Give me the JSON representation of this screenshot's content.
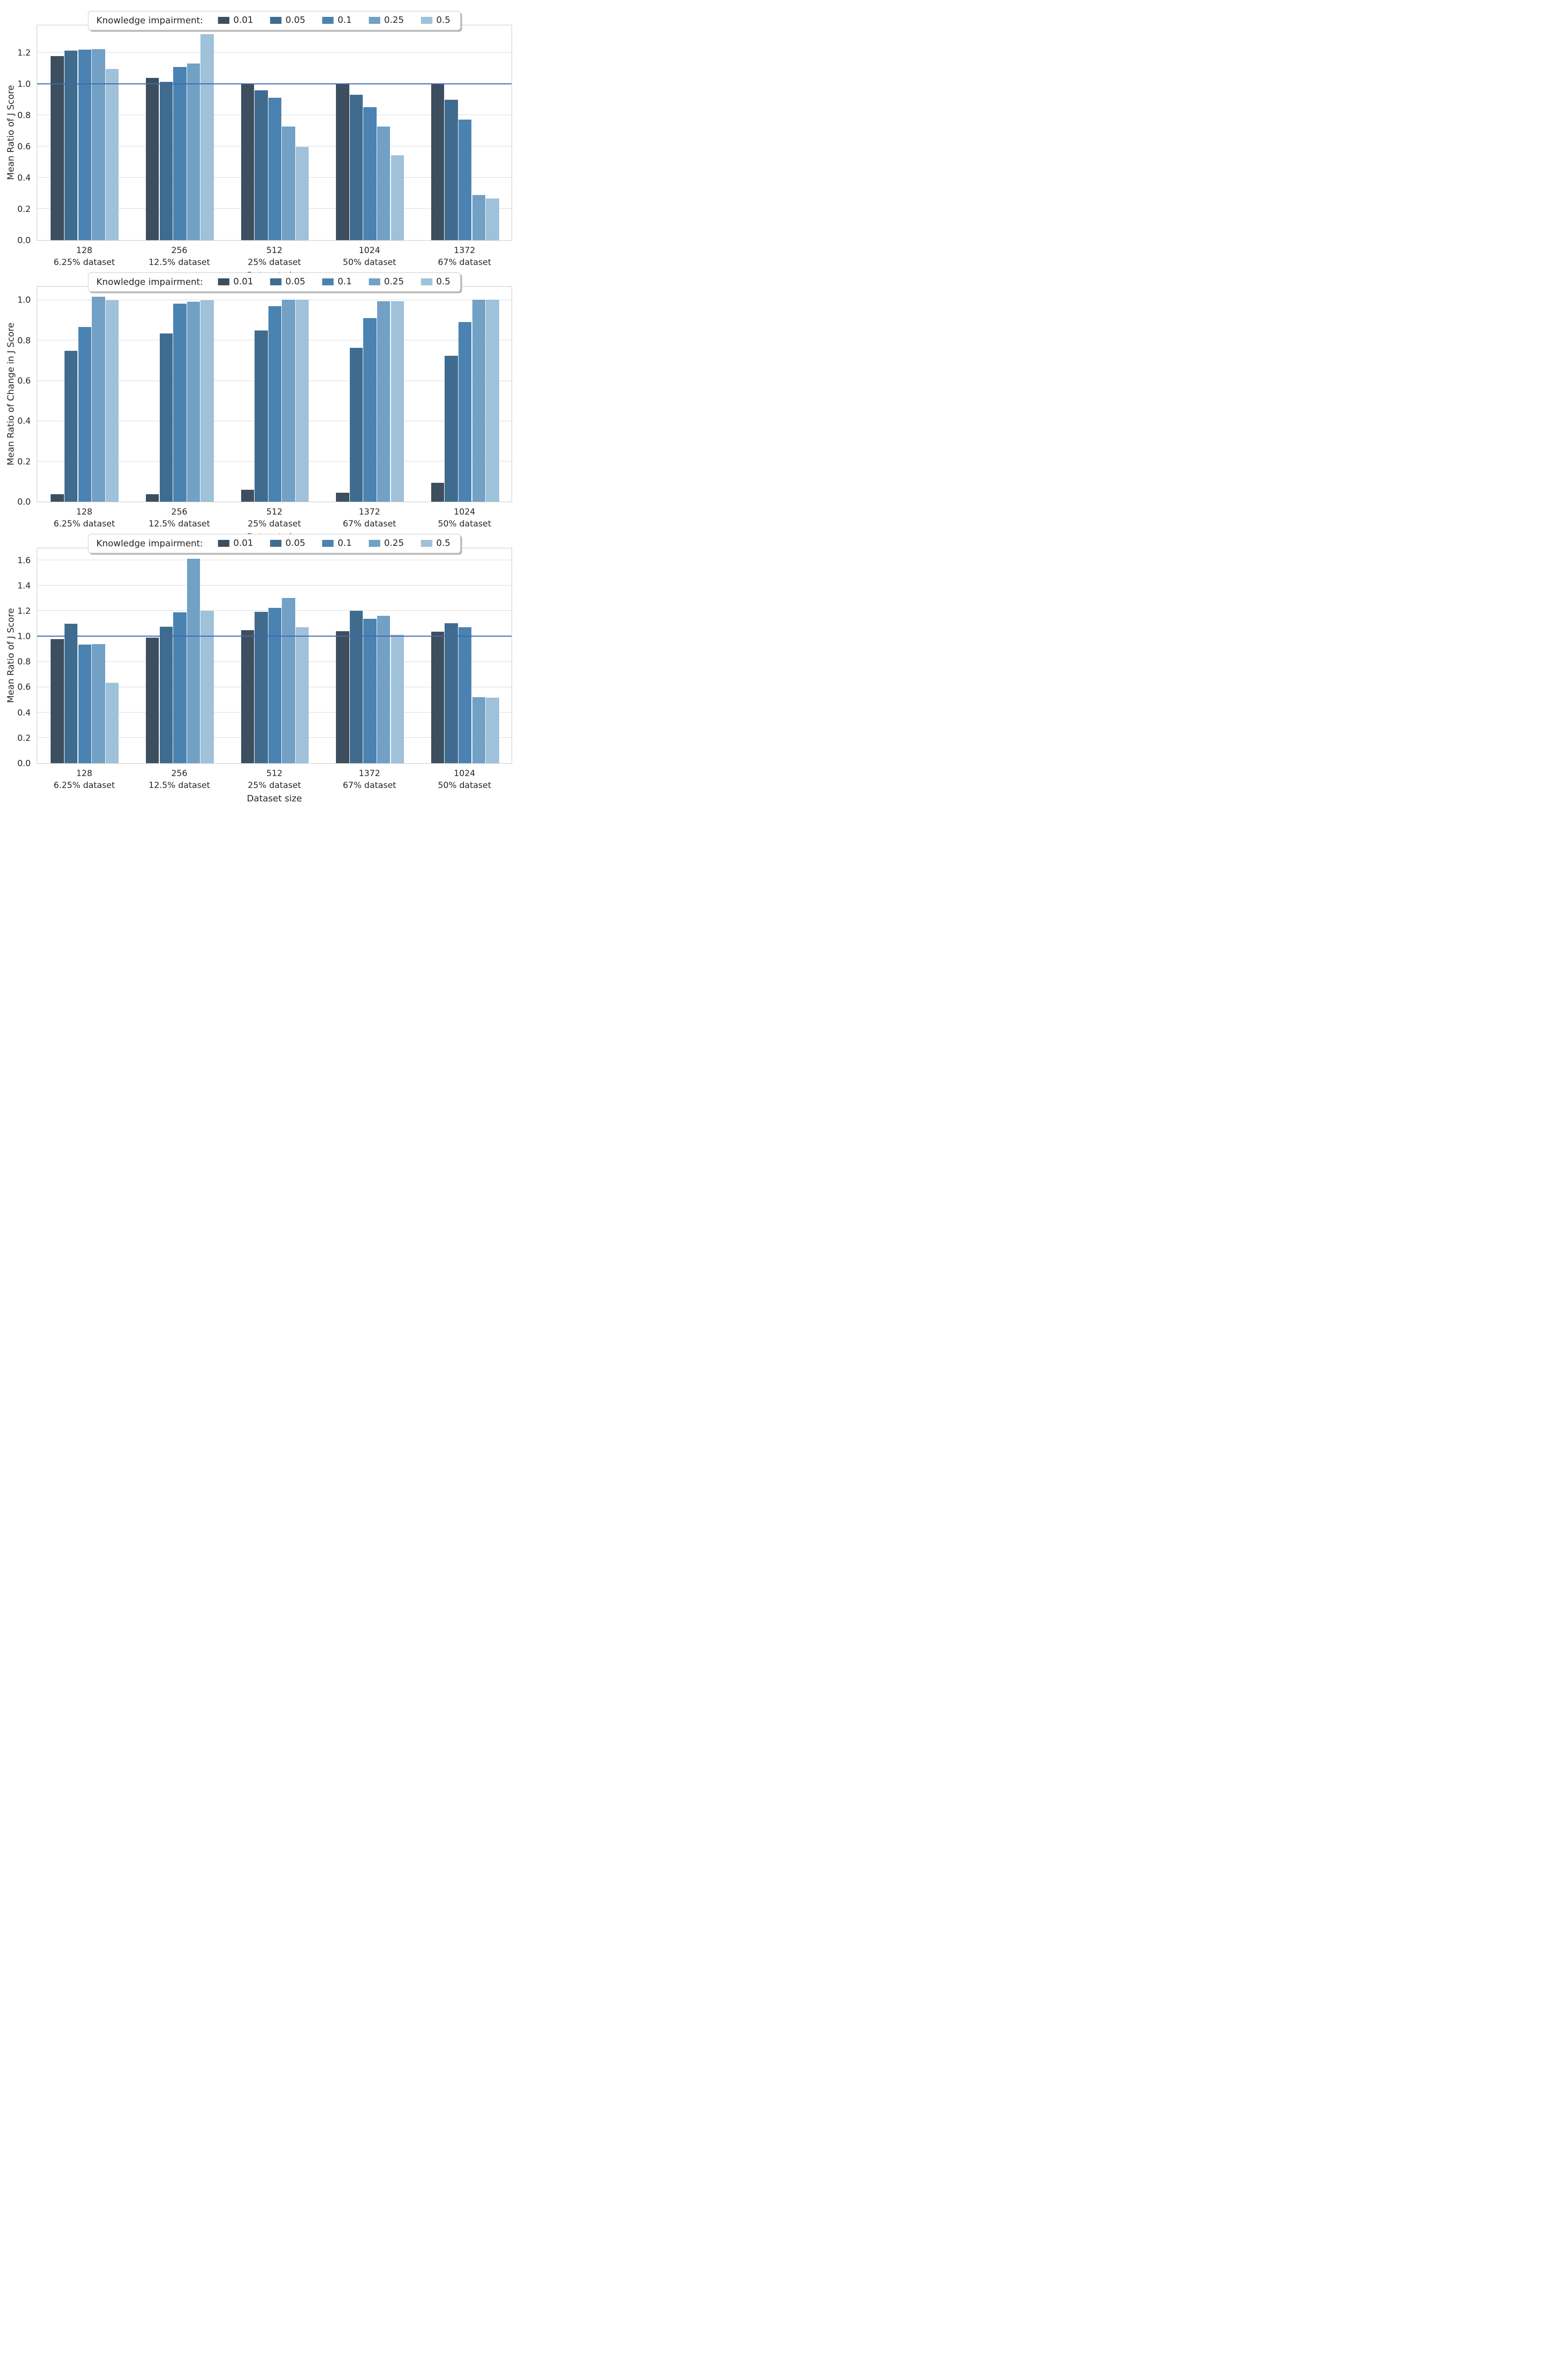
{
  "figure": {
    "background": "#ffffff",
    "text_color": "#262626",
    "grid_color": "#dcdcdc",
    "spine_color": "#c9c9c9",
    "refline_color": "#4466b3"
  },
  "legend": {
    "title": "Knowledge impairment:",
    "entries": [
      {
        "label": "0.01",
        "color": "#3d4f5e"
      },
      {
        "label": "0.05",
        "color": "#3f6c8e"
      },
      {
        "label": "0.1",
        "color": "#4a83b1"
      },
      {
        "label": "0.25",
        "color": "#72a1c5"
      },
      {
        "label": "0.5",
        "color": "#9fc1da"
      }
    ]
  },
  "chart_data": [
    {
      "type": "bar",
      "title": "",
      "ylabel": "Mean Ratio of J Score",
      "xlabel": "Dataset size",
      "ylim": [
        0,
        1.38
      ],
      "yticks": [
        0.0,
        0.2,
        0.4,
        0.6,
        0.8,
        1.0,
        1.2
      ],
      "refline": 1.0,
      "grid": "horizontal",
      "legend_position": "top-center",
      "categories": [
        {
          "size": "128",
          "subset": "6.25% dataset"
        },
        {
          "size": "256",
          "subset": "12.5% dataset"
        },
        {
          "size": "512",
          "subset": "25% dataset"
        },
        {
          "size": "1024",
          "subset": "50% dataset"
        },
        {
          "size": "1372",
          "subset": "67% dataset"
        }
      ],
      "series": [
        {
          "name": "0.01",
          "values": [
            1.176,
            1.036,
            1.0,
            0.997,
            0.997
          ]
        },
        {
          "name": "0.05",
          "values": [
            1.211,
            1.013,
            0.958,
            0.928,
            0.897
          ]
        },
        {
          "name": "0.1",
          "values": [
            1.217,
            1.106,
            0.911,
            0.851,
            0.772
          ]
        },
        {
          "name": "0.25",
          "values": [
            1.22,
            1.13,
            0.725,
            0.727,
            0.289
          ]
        },
        {
          "name": "0.5",
          "values": [
            1.095,
            1.318,
            0.596,
            0.542,
            0.265
          ]
        }
      ]
    },
    {
      "type": "bar",
      "title": "",
      "ylabel": "Mean Ratio of Change in J Score",
      "xlabel": "Dataset size",
      "ylim": [
        0,
        1.07
      ],
      "yticks": [
        0.0,
        0.2,
        0.4,
        0.6,
        0.8,
        1.0
      ],
      "refline": null,
      "grid": "horizontal",
      "legend_position": "top-center",
      "categories": [
        {
          "size": "128",
          "subset": "6.25% dataset"
        },
        {
          "size": "256",
          "subset": "12.5% dataset"
        },
        {
          "size": "512",
          "subset": "25% dataset"
        },
        {
          "size": "1372",
          "subset": "67% dataset"
        },
        {
          "size": "1024",
          "subset": "50% dataset"
        }
      ],
      "series": [
        {
          "name": "0.01",
          "values": [
            0.037,
            0.036,
            0.058,
            0.045,
            0.093
          ]
        },
        {
          "name": "0.05",
          "values": [
            0.748,
            0.835,
            0.848,
            0.762,
            0.722
          ]
        },
        {
          "name": "0.1",
          "values": [
            0.867,
            0.982,
            0.968,
            0.909,
            0.89
          ]
        },
        {
          "name": "0.25",
          "values": [
            1.017,
            0.992,
            1.0,
            0.993,
            1.0
          ]
        },
        {
          "name": "0.5",
          "values": [
            0.999,
            0.999,
            1.0,
            0.994,
            1.0
          ]
        }
      ]
    },
    {
      "type": "bar",
      "title": "",
      "ylabel": "Mean Ratio of J Score",
      "xlabel": "Dataset size",
      "ylim": [
        0,
        1.7
      ],
      "yticks": [
        0.0,
        0.2,
        0.4,
        0.6,
        0.8,
        1.0,
        1.2,
        1.4,
        1.6
      ],
      "refline": 1.0,
      "grid": "horizontal",
      "legend_position": "top-center",
      "categories": [
        {
          "size": "128",
          "subset": "6.25% dataset"
        },
        {
          "size": "256",
          "subset": "12.5% dataset"
        },
        {
          "size": "512",
          "subset": "25% dataset"
        },
        {
          "size": "1372",
          "subset": "67% dataset"
        },
        {
          "size": "1024",
          "subset": "50% dataset"
        }
      ],
      "series": [
        {
          "name": "0.01",
          "values": [
            0.978,
            0.988,
            1.048,
            1.039,
            1.034
          ]
        },
        {
          "name": "0.05",
          "values": [
            1.1,
            1.075,
            1.193,
            1.2,
            1.103
          ]
        },
        {
          "name": "0.1",
          "values": [
            0.933,
            1.188,
            1.224,
            1.139,
            1.069
          ]
        },
        {
          "name": "0.25",
          "values": [
            0.938,
            1.61,
            1.302,
            1.16,
            0.519
          ]
        },
        {
          "name": "0.5",
          "values": [
            0.632,
            1.2,
            1.07,
            1.012,
            0.515
          ]
        }
      ]
    }
  ]
}
